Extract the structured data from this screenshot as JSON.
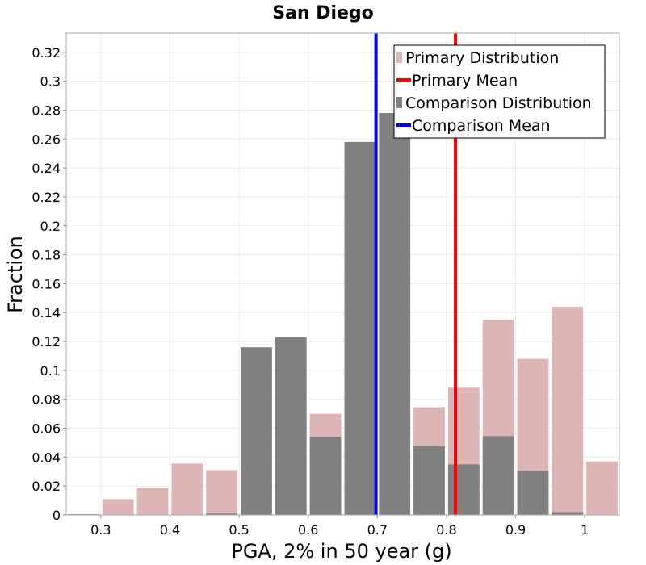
{
  "chart_data": {
    "type": "bar",
    "title": "San Diego",
    "xlabel": "PGA, 2% in 50 year (g)",
    "ylabel": "Fraction",
    "xlim": [
      0.25,
      1.05
    ],
    "ylim": [
      0,
      0.3333
    ],
    "xticks": [
      0.3,
      0.4,
      0.5,
      0.6,
      0.7,
      0.8,
      0.9,
      1
    ],
    "xtick_labels": [
      "0.3",
      "0.4",
      "0.5",
      "0.6",
      "0.7",
      "0.8",
      "0.9",
      "1"
    ],
    "yticks": [
      0,
      0.02,
      0.04,
      0.06,
      0.08,
      0.1,
      0.12,
      0.14,
      0.16,
      0.18,
      0.2,
      0.22,
      0.24,
      0.26,
      0.28,
      0.3,
      0.32
    ],
    "ytick_labels": [
      "0",
      "0.02",
      "0.04",
      "0.06",
      "0.08",
      "0.1",
      "0.12",
      "0.14",
      "0.16",
      "0.18",
      "0.2",
      "0.22",
      "0.24",
      "0.26",
      "0.28",
      "0.3",
      "0.32"
    ],
    "grid": true,
    "bin_width": 0.05,
    "bin_centers": [
      0.275,
      0.325,
      0.375,
      0.425,
      0.475,
      0.525,
      0.575,
      0.625,
      0.675,
      0.725,
      0.775,
      0.825,
      0.875,
      0.925,
      0.975,
      1.025
    ],
    "series": [
      {
        "name": "Primary Distribution",
        "color": "#ddb5b5",
        "values": [
          0.0,
          0.011,
          0.019,
          0.0355,
          0.031,
          0.0,
          0.0,
          0.07,
          0.0,
          0.0,
          0.0745,
          0.088,
          0.135,
          0.108,
          0.144,
          0.037
        ]
      },
      {
        "name": "Comparison Distribution",
        "color": "#808080",
        "values": [
          0.0005,
          0.0,
          0.0,
          0.0,
          0.001,
          0.116,
          0.123,
          0.054,
          0.258,
          0.278,
          0.0475,
          0.035,
          0.0545,
          0.0305,
          0.002,
          0.0
        ]
      }
    ],
    "mean_lines": [
      {
        "name": "Primary Mean",
        "x": 0.813,
        "color": "#ff0000"
      },
      {
        "name": "Comparison Mean",
        "x": 0.698,
        "color": "#0000ff"
      }
    ],
    "legend_position": "top-right",
    "legend": [
      {
        "label": "Primary Distribution",
        "kind": "bar",
        "color": "#ddb5b5"
      },
      {
        "label": "Primary Mean",
        "kind": "line",
        "color": "#ff0000"
      },
      {
        "label": "Comparison Distribution",
        "kind": "bar",
        "color": "#808080"
      },
      {
        "label": "Comparison Mean",
        "kind": "line",
        "color": "#0000ff"
      }
    ]
  }
}
